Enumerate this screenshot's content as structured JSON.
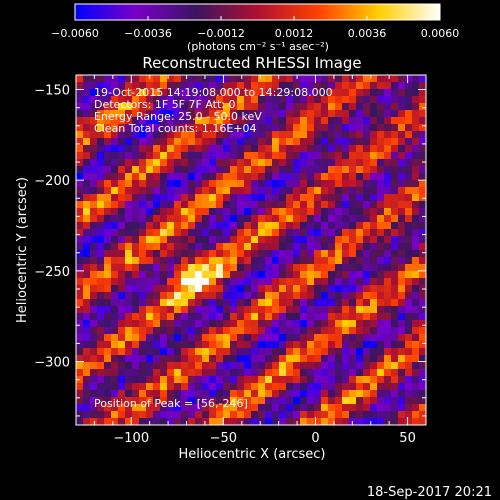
{
  "chart_data": {
    "type": "heatmap",
    "title": "Reconstructed RHESSI Image",
    "xlabel": "Heliocentric X (arcsec)",
    "ylabel": "Heliocentric Y (arcsec)",
    "xlim": [
      -130,
      60
    ],
    "ylim": [
      -335,
      -142
    ],
    "x_ticks": [
      -100,
      -50,
      0,
      50
    ],
    "x_tick_labels": [
      "−100",
      "−50",
      "0",
      "50"
    ],
    "y_ticks": [
      -150,
      -200,
      -250,
      -300
    ],
    "y_tick_labels": [
      "−150",
      "−200",
      "−250",
      "−300"
    ],
    "colorbar": {
      "min": -0.006,
      "max": 0.006,
      "ticks": [
        -0.006,
        -0.0036,
        -0.0012,
        0.0012,
        0.0036,
        0.006
      ],
      "tick_labels": [
        "−0.0060",
        "−0.0036",
        "−0.0012",
        "0.0012",
        "0.0036",
        "0.0060"
      ],
      "units_label": "(photons cm⁻² s⁻¹ asec⁻²)",
      "colormap": [
        "#0000ff",
        "#7a00c8",
        "#3a1560",
        "#b01030",
        "#ff4000",
        "#ffd000",
        "#ffffff"
      ]
    },
    "annotations": [
      "19-Oct-2015 14:19:08.000 to 14:29:08.000",
      "Detectors: 1F 5F 7F  Att: 0",
      "Energy Range: 25.0 - 50.0 keV",
      "Clean    Total counts: 1.16E+04"
    ],
    "peak_label": "Position of Peak = [56,-246]",
    "grid": false
  },
  "footer": {
    "date": "18-Sep-2017 20:21"
  }
}
